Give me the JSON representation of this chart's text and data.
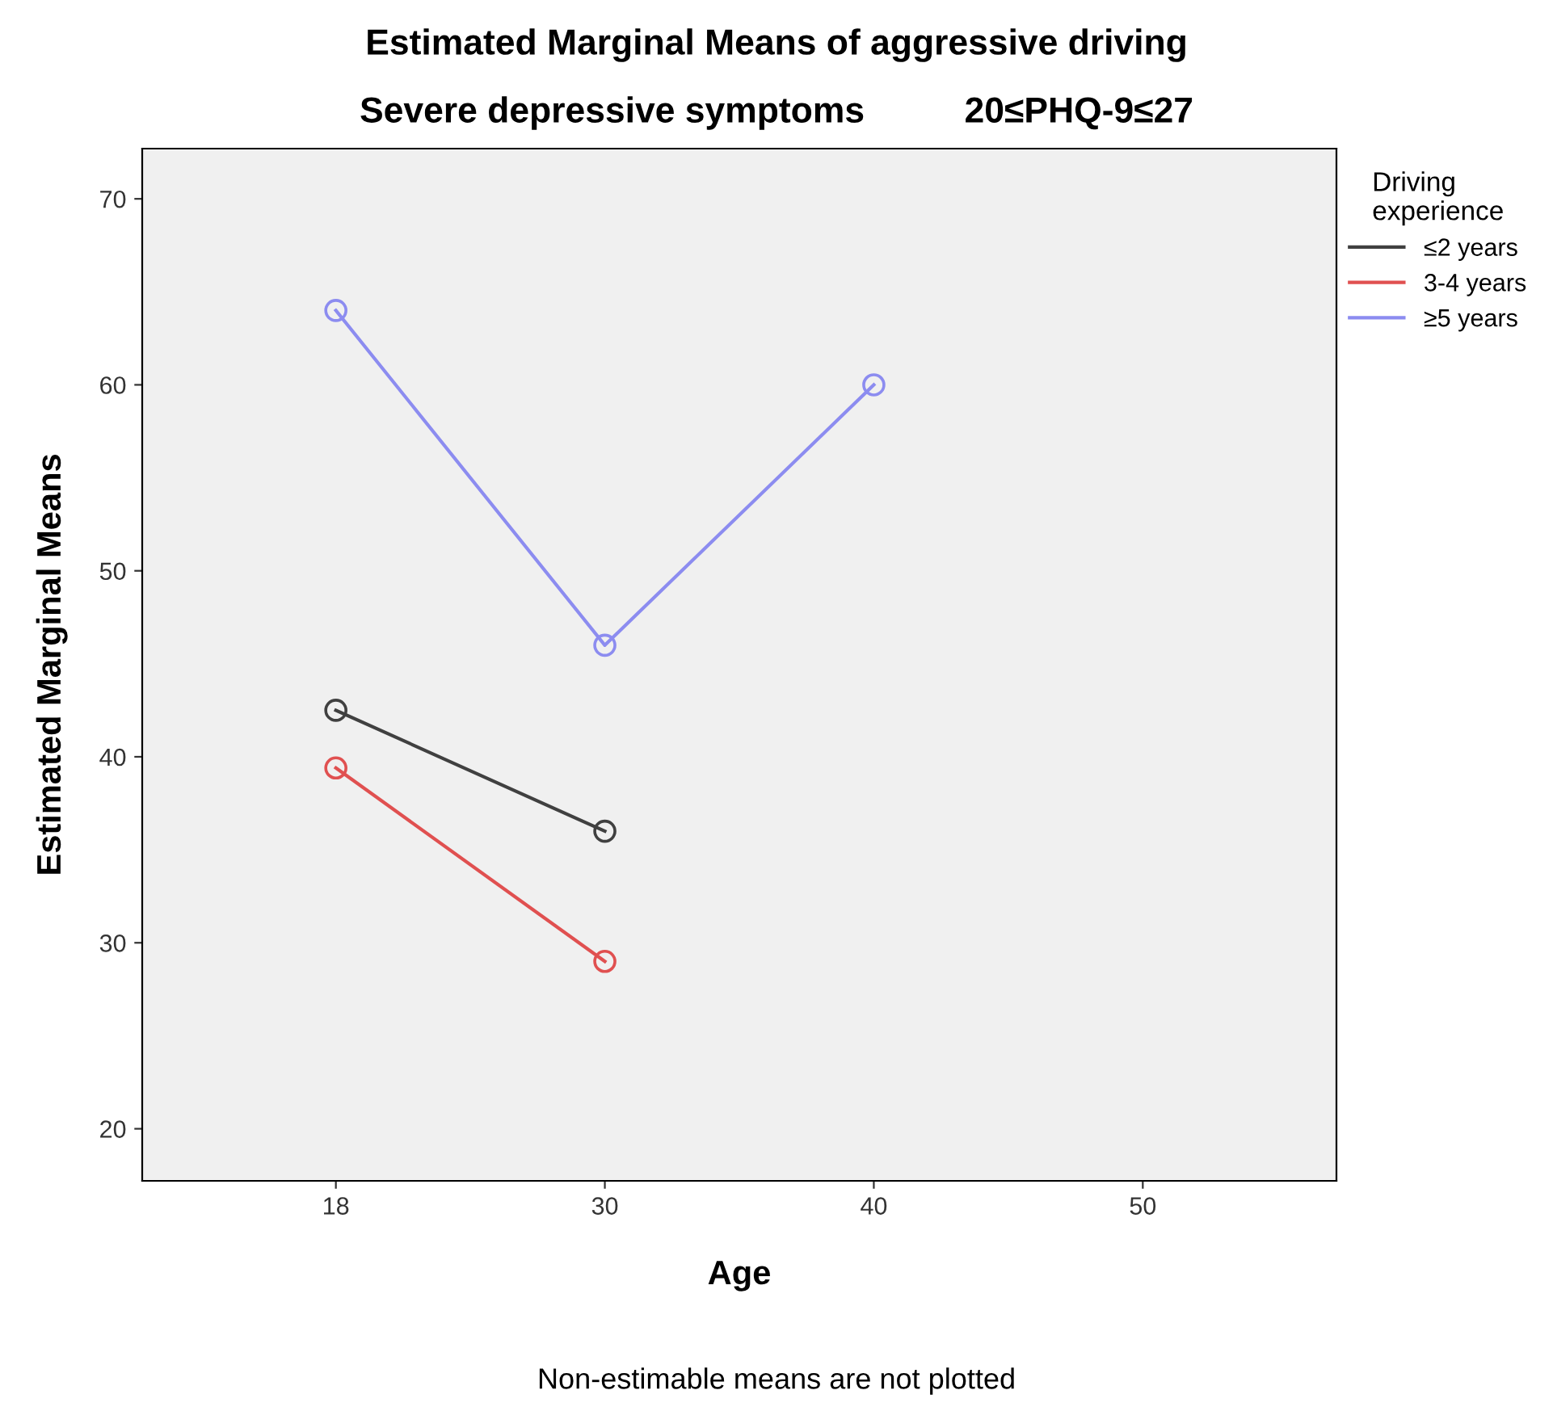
{
  "chart_data": {
    "type": "line",
    "title": "Estimated Marginal Means of aggressive driving",
    "subtitle": "Severe depressive symptoms          20≤PHQ-9≤27",
    "xlabel": "Age",
    "ylabel": "Estimated Marginal Means",
    "categories": [
      "18",
      "30",
      "40",
      "50"
    ],
    "series": [
      {
        "name": "≤2 years",
        "color": "#404040",
        "values": [
          42.5,
          36,
          null,
          null
        ]
      },
      {
        "name": "3-4 years",
        "color": "#e05050",
        "values": [
          39.4,
          29,
          null,
          null
        ]
      },
      {
        "name": "≥5 years",
        "color": "#8c8cf0",
        "values": [
          64,
          46,
          60,
          null
        ]
      }
    ],
    "ylim": [
      17.2,
      72.7
    ],
    "yticks": [
      20,
      30,
      40,
      50,
      60,
      70
    ],
    "grid": false,
    "legend": "right",
    "legend_title": "Driving\nexperience",
    "marker": "circle",
    "annotations": [
      "Non-estimable means are not plotted"
    ]
  }
}
